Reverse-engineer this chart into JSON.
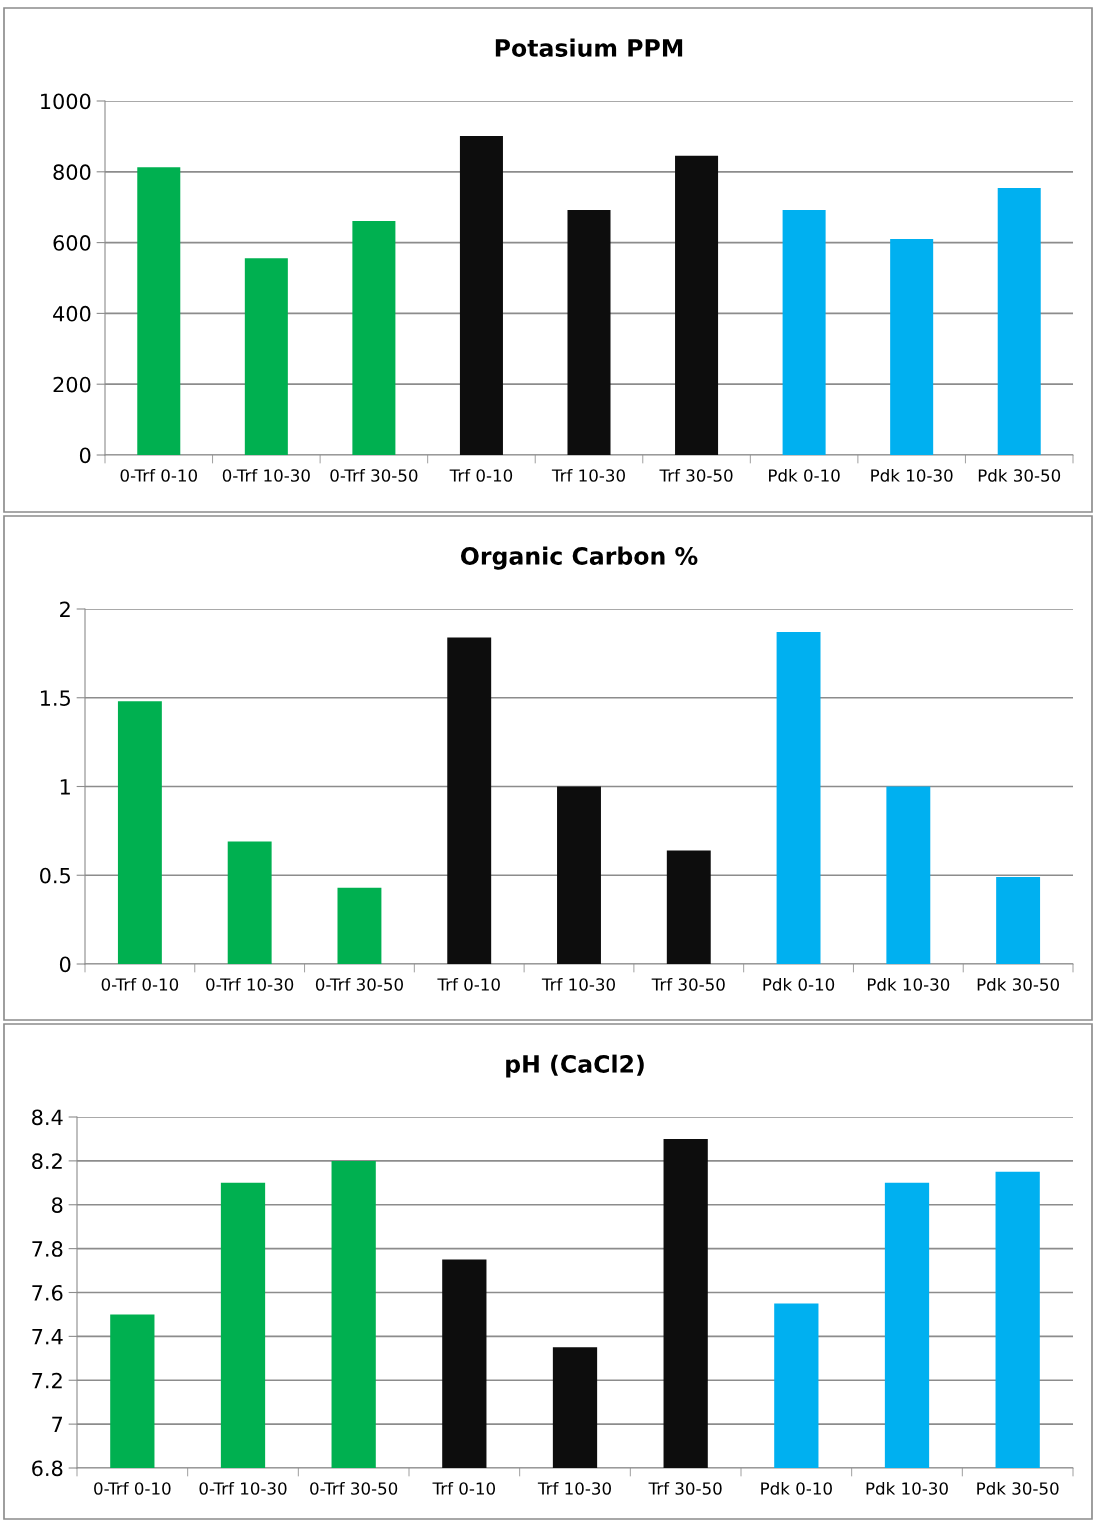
{
  "chart_data": [
    {
      "type": "bar",
      "title": "Potasium PPM",
      "categories": [
        "0-Trf 0-10",
        "0-Trf 10-30",
        "0-Trf 30-50",
        "Trf 0-10",
        "Trf 10-30",
        "Trf 30-50",
        "Pdk 0-10",
        "Pdk 10-30",
        "Pdk 30-50"
      ],
      "values": [
        813,
        556,
        661,
        901,
        692,
        845,
        692,
        610,
        754
      ],
      "colors": [
        "#00b050",
        "#00b050",
        "#00b050",
        "#0d0d0d",
        "#0d0d0d",
        "#0d0d0d",
        "#00b0f0",
        "#00b0f0",
        "#00b0f0"
      ],
      "ylim": [
        0,
        1000
      ],
      "yticks": [
        0,
        200,
        400,
        600,
        800,
        1000
      ],
      "grid": "y"
    },
    {
      "type": "bar",
      "title": "Organic Carbon %",
      "categories": [
        "0-Trf 0-10",
        "0-Trf 10-30",
        "0-Trf 30-50",
        "Trf 0-10",
        "Trf 10-30",
        "Trf 30-50",
        "Pdk 0-10",
        "Pdk 10-30",
        "Pdk 30-50"
      ],
      "values": [
        1.48,
        0.69,
        0.43,
        1.84,
        1.0,
        0.64,
        1.87,
        1.0,
        0.49
      ],
      "colors": [
        "#00b050",
        "#00b050",
        "#00b050",
        "#0d0d0d",
        "#0d0d0d",
        "#0d0d0d",
        "#00b0f0",
        "#00b0f0",
        "#00b0f0"
      ],
      "ylim": [
        0,
        2
      ],
      "yticks": [
        0,
        0.5,
        1,
        1.5,
        2
      ],
      "grid": "y"
    },
    {
      "type": "bar",
      "title": "pH (CaCl2)",
      "categories": [
        "0-Trf 0-10",
        "0-Trf 10-30",
        "0-Trf 30-50",
        "Trf 0-10",
        "Trf 10-30",
        "Trf 30-50",
        "Pdk 0-10",
        "Pdk 10-30",
        "Pdk 30-50"
      ],
      "values": [
        7.5,
        8.1,
        8.2,
        7.75,
        7.35,
        8.3,
        7.55,
        8.1,
        8.15
      ],
      "colors": [
        "#00b050",
        "#00b050",
        "#00b050",
        "#0d0d0d",
        "#0d0d0d",
        "#0d0d0d",
        "#00b0f0",
        "#00b0f0",
        "#00b0f0"
      ],
      "ylim": [
        6.8,
        8.4
      ],
      "yticks": [
        6.8,
        7,
        7.2,
        7.4,
        7.6,
        7.8,
        8,
        8.2,
        8.4
      ],
      "grid": "y"
    }
  ]
}
